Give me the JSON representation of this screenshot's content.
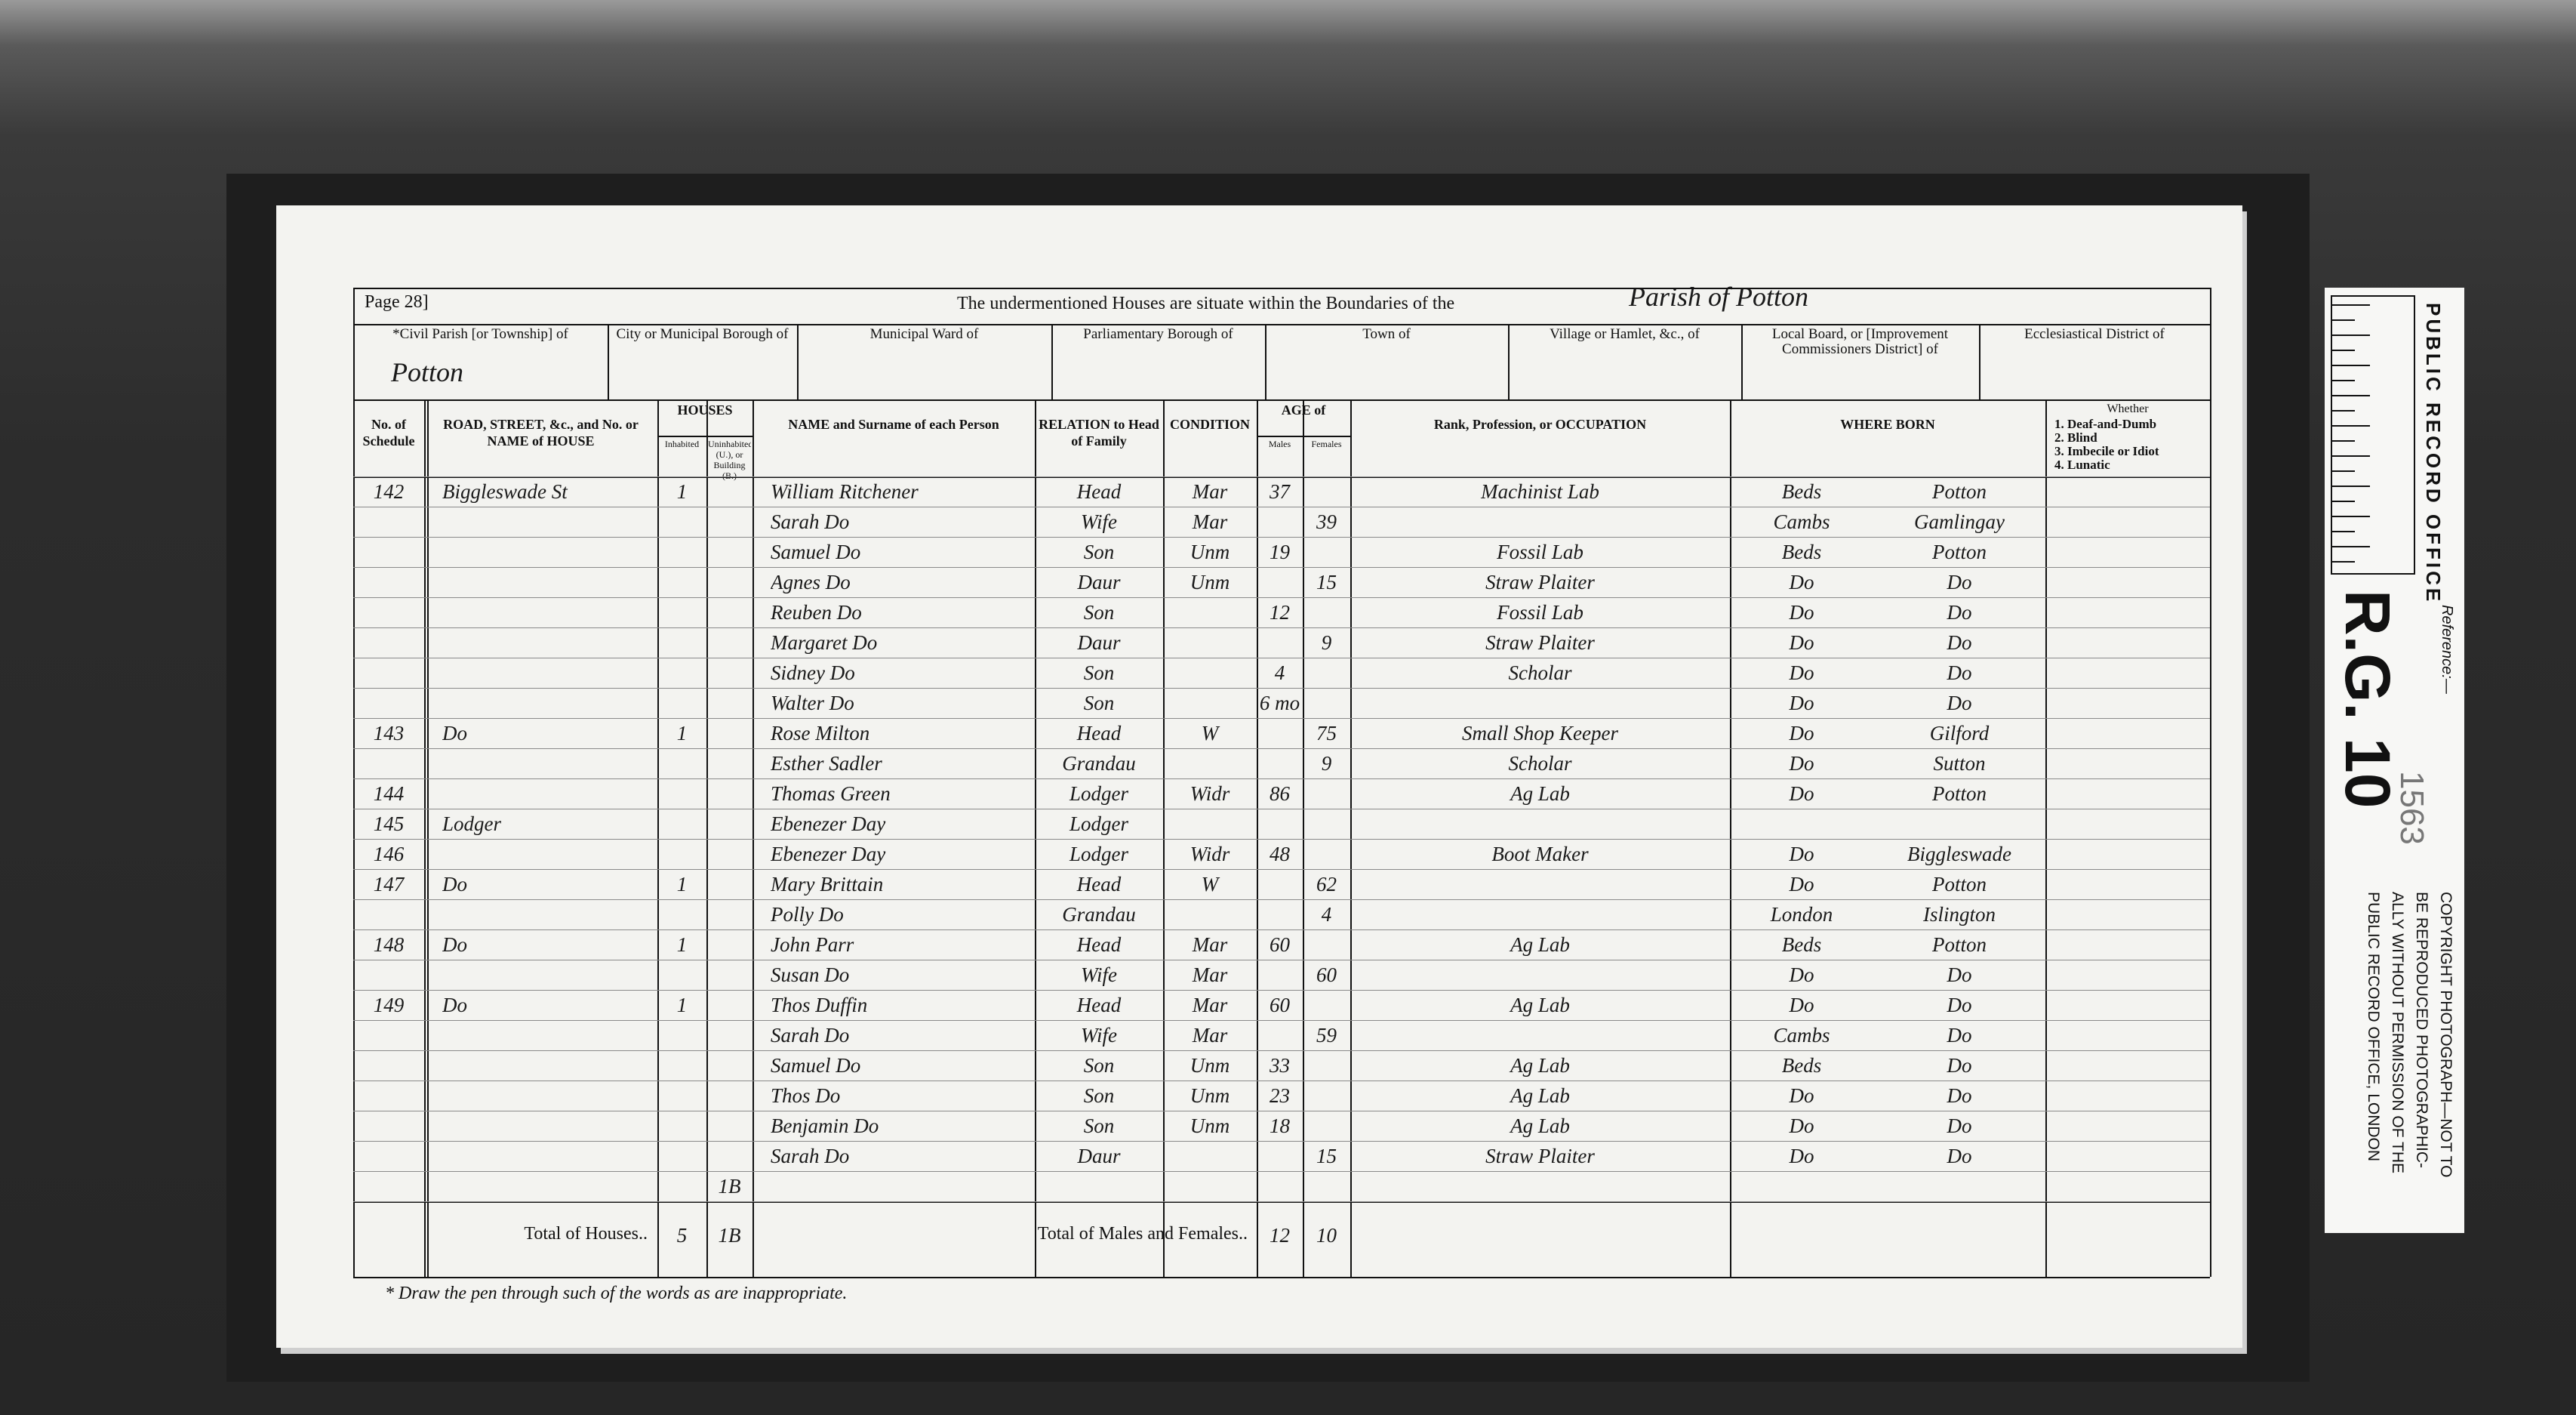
{
  "header": {
    "page": "Page 28]",
    "heading": "The undermentioned Houses are situate within the Boundaries of the",
    "parish": "Parish of Potton"
  },
  "districts": [
    {
      "label": "*Civil Parish [or Township] of",
      "value": "Potton"
    },
    {
      "label": "City or Municipal Borough of"
    },
    {
      "label": "Municipal Ward of"
    },
    {
      "label": "Parliamentary Borough of"
    },
    {
      "label": "Town of"
    },
    {
      "label": "Village or Hamlet, &c., of"
    },
    {
      "label": "Local Board, or [Improvement Commissioners District] of"
    },
    {
      "label": "Ecclesiastical District of"
    }
  ],
  "table": {
    "columns": [
      {
        "label": "No. of Schedule"
      },
      {
        "label": "ROAD, STREET, &c., and No. or NAME of HOUSE"
      },
      {
        "label": "HOUSES",
        "sub": [
          "Inhabited",
          "Uninhabited (U.), or Building (B.)"
        ]
      },
      {
        "label": "NAME and Surname of each Person"
      },
      {
        "label": "RELATION to Head of Family"
      },
      {
        "label": "CONDITION"
      },
      {
        "label": "AGE of",
        "sub": [
          "Males",
          "Females"
        ]
      },
      {
        "label": "Rank, Profession, or OCCUPATION"
      },
      {
        "label": "WHERE BORN"
      },
      {
        "label": "Whether",
        "sub": [
          "1. Deaf-and-Dumb",
          "2. Blind",
          "3. Imbecile or Idiot",
          "4. Lunatic"
        ]
      }
    ],
    "rows": [
      {
        "schedule": "142",
        "road": "Biggleswade St",
        "inhabited": "1",
        "name": "William Ritchener",
        "relation": "Head",
        "condition": "Mar",
        "male": "37",
        "occupation": "Machinist Lab",
        "born_county": "Beds",
        "born_parish": "Potton"
      },
      {
        "name": "Sarah Do",
        "relation": "Wife",
        "condition": "Mar",
        "female": "39",
        "born_county": "Cambs",
        "born_parish": "Gamlingay"
      },
      {
        "name": "Samuel Do",
        "relation": "Son",
        "condition": "Unm",
        "male": "19",
        "occupation": "Fossil Lab",
        "born_county": "Beds",
        "born_parish": "Potton"
      },
      {
        "name": "Agnes Do",
        "relation": "Daur",
        "condition": "Unm",
        "female": "15",
        "occupation": "Straw Plaiter",
        "born_county": "Do",
        "born_parish": "Do"
      },
      {
        "name": "Reuben Do",
        "relation": "Son",
        "male": "12",
        "occupation": "Fossil Lab",
        "born_county": "Do",
        "born_parish": "Do"
      },
      {
        "name": "Margaret Do",
        "relation": "Daur",
        "female": "9",
        "occupation": "Straw Plaiter",
        "born_county": "Do",
        "born_parish": "Do"
      },
      {
        "name": "Sidney Do",
        "relation": "Son",
        "male": "4",
        "occupation": "Scholar",
        "born_county": "Do",
        "born_parish": "Do"
      },
      {
        "name": "Walter Do",
        "relation": "Son",
        "male": "6 mo",
        "born_county": "Do",
        "born_parish": "Do"
      },
      {
        "schedule": "143",
        "road": "Do",
        "inhabited": "1",
        "name": "Rose Milton",
        "relation": "Head",
        "condition": "W",
        "female": "75",
        "occupation": "Small Shop Keeper",
        "born_county": "Do",
        "born_parish": "Gilford"
      },
      {
        "name": "Esther Sadler",
        "relation": "Grandau",
        "female": "9",
        "occupation": "Scholar",
        "born_county": "Do",
        "born_parish": "Sutton"
      },
      {
        "schedule": "144",
        "name": "Thomas Green",
        "relation": "Lodger",
        "condition": "Widr",
        "male": "86",
        "occupation": "Ag Lab",
        "born_county": "Do",
        "born_parish": "Potton"
      },
      {
        "schedule": "145",
        "road": "Lodger",
        "name": "Ebenezer Day",
        "relation": "Lodger"
      },
      {
        "schedule": "146",
        "name": "Ebenezer Day",
        "relation": "Lodger",
        "condition": "Widr",
        "male": "48",
        "occupation": "Boot Maker",
        "born_county": "Do",
        "born_parish": "Biggleswade"
      },
      {
        "schedule": "147",
        "road": "Do",
        "inhabited": "1",
        "name": "Mary Brittain",
        "relation": "Head",
        "condition": "W",
        "female": "62",
        "born_county": "Do",
        "born_parish": "Potton"
      },
      {
        "name": "Polly Do",
        "relation": "Grandau",
        "female": "4",
        "born_county": "London",
        "born_parish": "Islington"
      },
      {
        "schedule": "148",
        "road": "Do",
        "inhabited": "1",
        "name": "John Parr",
        "relation": "Head",
        "condition": "Mar",
        "male": "60",
        "occupation": "Ag Lab",
        "born_county": "Beds",
        "born_parish": "Potton"
      },
      {
        "name": "Susan Do",
        "relation": "Wife",
        "condition": "Mar",
        "female": "60",
        "born_county": "Do",
        "born_parish": "Do"
      },
      {
        "schedule": "149",
        "road": "Do",
        "inhabited": "1",
        "name": "Thos Duffin",
        "relation": "Head",
        "condition": "Mar",
        "male": "60",
        "occupation": "Ag Lab",
        "born_county": "Do",
        "born_parish": "Do"
      },
      {
        "name": "Sarah Do",
        "relation": "Wife",
        "condition": "Mar",
        "female": "59",
        "born_county": "Cambs",
        "born_parish": "Do"
      },
      {
        "name": "Samuel Do",
        "relation": "Son",
        "condition": "Unm",
        "male": "33",
        "occupation": "Ag Lab",
        "born_county": "Beds",
        "born_parish": "Do"
      },
      {
        "name": "Thos Do",
        "relation": "Son",
        "condition": "Unm",
        "male": "23",
        "occupation": "Ag Lab",
        "born_county": "Do",
        "born_parish": "Do"
      },
      {
        "name": "Benjamin Do",
        "relation": "Son",
        "condition": "Unm",
        "male": "18",
        "occupation": "Ag Lab",
        "born_county": "Do",
        "born_parish": "Do"
      },
      {
        "name": "Sarah Do",
        "relation": "Daur",
        "female": "15",
        "occupation": "Straw Plaiter",
        "born_county": "Do",
        "born_parish": "Do"
      },
      {
        "uninhabited": "1B"
      }
    ],
    "totals": {
      "houses_label": "Total of Houses..",
      "inhabited": "5",
      "uninhabited": "1B",
      "persons_label": "Total of Males and Females..",
      "males": "12",
      "females": "10"
    }
  },
  "footnote": "* Draw the pen through such of the words as are inappropriate.",
  "reference": {
    "office": "PUBLIC RECORD OFFICE",
    "label": "Reference:—",
    "class": "R.G. 10",
    "piece": "1563",
    "copyright": [
      "COPYRIGHT PHOTOGRAPH—NOT TO",
      "BE REPRODUCED PHOTOGRAPHIC-",
      "ALLY WITHOUT PERMISSION OF THE",
      "PUBLIC RECORD OFFICE, LONDON"
    ]
  }
}
